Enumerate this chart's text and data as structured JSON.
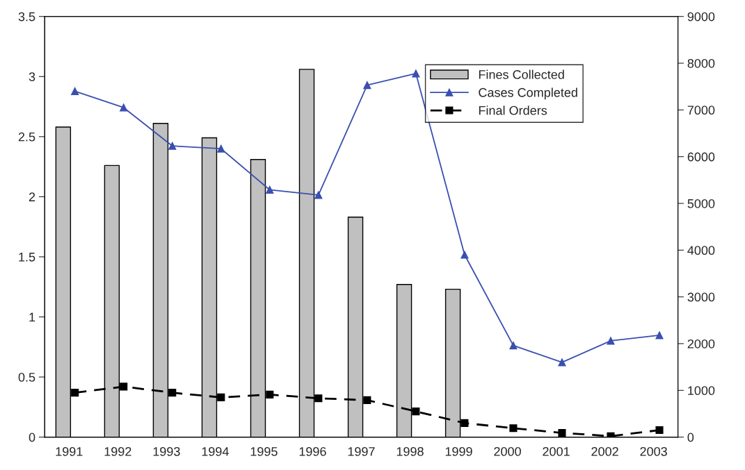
{
  "chart_data": {
    "type": "bar",
    "categories": [
      "1991",
      "1992",
      "1993",
      "1994",
      "1995",
      "1996",
      "1997",
      "1998",
      "1999",
      "2000",
      "2001",
      "2002",
      "2003"
    ],
    "series": [
      {
        "name": "Fines Collected",
        "color": "#c0c0c0",
        "values": [
          2.58,
          2.26,
          2.61,
          2.49,
          2.31,
          3.06,
          1.83,
          1.27,
          1.23,
          null,
          null,
          null,
          null
        ]
      },
      {
        "name": "Cases Completed",
        "type": "line",
        "axis": "y2",
        "color": "#3a4fb0",
        "marker": "triangle",
        "line_style": "solid",
        "values": [
          7400,
          7050,
          6230,
          6170,
          5290,
          5180,
          7530,
          7780,
          3900,
          1960,
          1600,
          2060,
          2180
        ]
      },
      {
        "name": "Final Orders",
        "type": "line",
        "axis": "y2",
        "color": "#000000",
        "marker": "square",
        "line_style": "dashed",
        "values": [
          950,
          1080,
          950,
          850,
          910,
          830,
          790,
          550,
          300,
          190,
          90,
          20,
          150
        ]
      }
    ],
    "ylim": [
      0,
      3.5
    ],
    "yticks": [
      0,
      0.5,
      1,
      1.5,
      2,
      2.5,
      3,
      3.5
    ],
    "y2lim": [
      0,
      9000
    ],
    "y2ticks": [
      0,
      1000,
      2000,
      3000,
      4000,
      5000,
      6000,
      7000,
      8000,
      9000
    ],
    "grid": false,
    "legend": "top right"
  }
}
